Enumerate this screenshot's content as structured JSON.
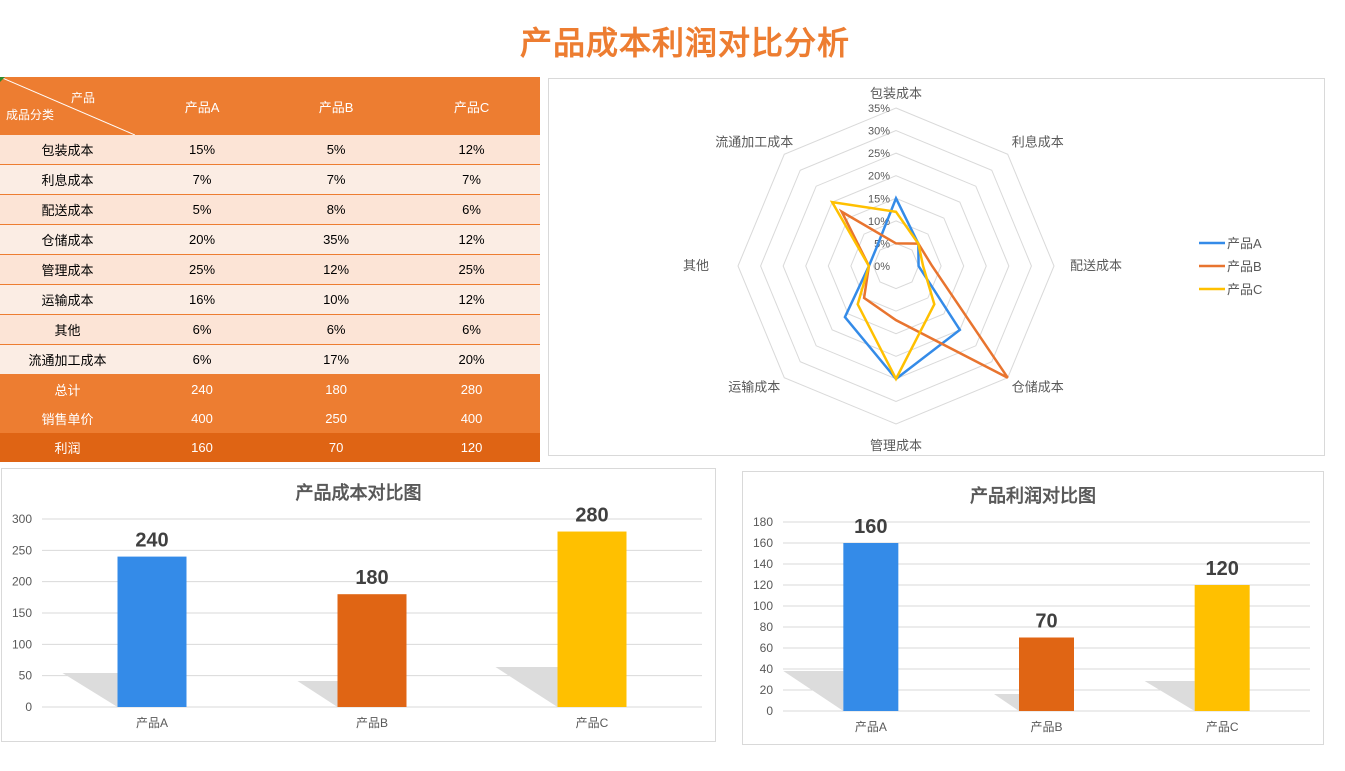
{
  "page_title": "产品成本利润对比分析",
  "table": {
    "corner_top": "产品",
    "corner_bottom": "成品分类",
    "columns": [
      "产品A",
      "产品B",
      "产品C"
    ],
    "rows": [
      {
        "label": "包装成本",
        "values": [
          "15%",
          "5%",
          "12%"
        ]
      },
      {
        "label": "利息成本",
        "values": [
          "7%",
          "7%",
          "7%"
        ]
      },
      {
        "label": "配送成本",
        "values": [
          "5%",
          "8%",
          "6%"
        ]
      },
      {
        "label": "仓储成本",
        "values": [
          "20%",
          "35%",
          "12%"
        ]
      },
      {
        "label": "管理成本",
        "values": [
          "25%",
          "12%",
          "25%"
        ]
      },
      {
        "label": "运输成本",
        "values": [
          "16%",
          "10%",
          "12%"
        ]
      },
      {
        "label": "其他",
        "values": [
          "6%",
          "6%",
          "6%"
        ]
      },
      {
        "label": "流通加工成本",
        "values": [
          "6%",
          "17%",
          "20%"
        ]
      }
    ],
    "summary": [
      {
        "label": "总计",
        "values": [
          "240",
          "180",
          "280"
        ]
      },
      {
        "label": "销售单价",
        "values": [
          "400",
          "250",
          "400"
        ]
      },
      {
        "label": "利润",
        "values": [
          "160",
          "70",
          "120"
        ]
      }
    ]
  },
  "colors": {
    "accent": "#ED7D31",
    "profit_row": "#DF6414",
    "row_light": "#FCE4D6",
    "row_lighter": "#FBEDE4",
    "A": "#348BE8",
    "B": "#E06514",
    "B_line": "#E8742F",
    "C": "#FFC000"
  },
  "chart_data": [
    {
      "type": "radar",
      "title": "",
      "categories": [
        "包装成本",
        "利息成本",
        "配送成本",
        "仓储成本",
        "管理成本",
        "运输成本",
        "其他",
        "流通加工成本"
      ],
      "series": [
        {
          "name": "产品A",
          "values": [
            15,
            7,
            5,
            20,
            25,
            16,
            6,
            6
          ]
        },
        {
          "name": "产品B",
          "values": [
            5,
            7,
            8,
            35,
            12,
            10,
            6,
            17
          ]
        },
        {
          "name": "产品C",
          "values": [
            12,
            7,
            6,
            12,
            25,
            12,
            6,
            20
          ]
        }
      ],
      "ticks": [
        "0%",
        "5%",
        "10%",
        "15%",
        "20%",
        "25%",
        "30%",
        "35%"
      ],
      "rlim": [
        0,
        35
      ],
      "legend_position": "right"
    },
    {
      "type": "bar",
      "title": "产品成本对比图",
      "categories": [
        "产品A",
        "产品B",
        "产品C"
      ],
      "values": [
        240,
        180,
        280
      ],
      "yticks": [
        0,
        50,
        100,
        150,
        200,
        250,
        300
      ],
      "ylim": [
        0,
        300
      ],
      "xlabel": "",
      "ylabel": ""
    },
    {
      "type": "bar",
      "title": "产品利润对比图",
      "categories": [
        "产品A",
        "产品B",
        "产品C"
      ],
      "values": [
        160,
        70,
        120
      ],
      "yticks": [
        0,
        20,
        40,
        60,
        80,
        100,
        120,
        140,
        160,
        180
      ],
      "ylim": [
        0,
        180
      ],
      "xlabel": "",
      "ylabel": ""
    }
  ]
}
